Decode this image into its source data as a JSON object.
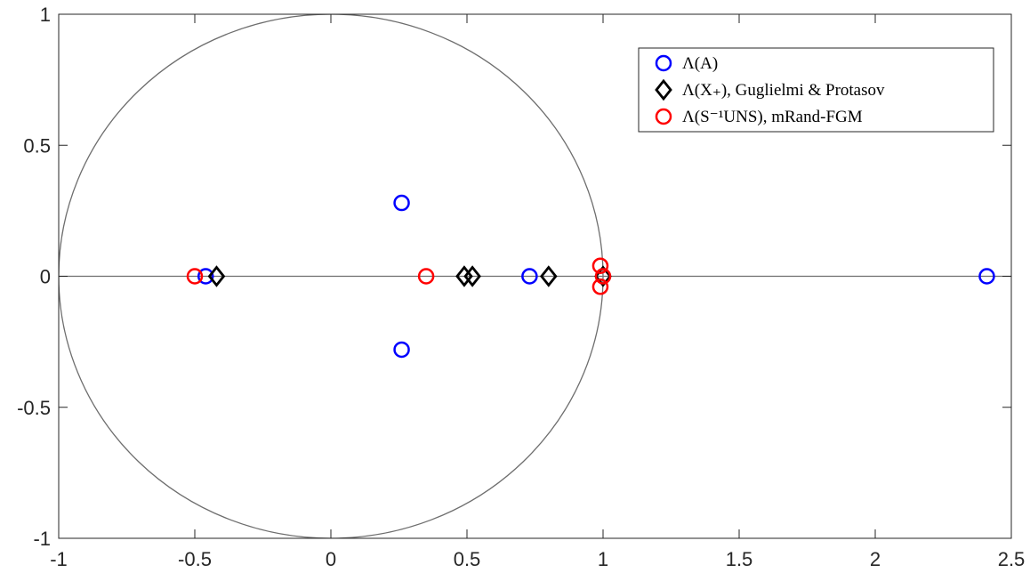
{
  "chart_data": {
    "type": "scatter",
    "xlim": [
      -1,
      2.5
    ],
    "ylim": [
      -1,
      1
    ],
    "grid": false,
    "legend_position": "top-right",
    "x_ticks": [
      "-1",
      "-0.5",
      "0",
      "0.5",
      "1",
      "1.5",
      "2",
      "2.5"
    ],
    "x_tick_values": [
      -1,
      -0.5,
      0,
      0.5,
      1,
      1.5,
      2,
      2.5
    ],
    "y_ticks": [
      "1",
      "0.5",
      "0",
      "-0.5",
      "-1"
    ],
    "y_tick_values": [
      1,
      0.5,
      0,
      -0.5,
      -1
    ],
    "reference_lines": {
      "unit_circle": {
        "center": [
          0,
          0
        ],
        "radius": 1,
        "color": "#6e6e6e"
      },
      "real_axis": {
        "y": 0,
        "color": "#6e6e6e"
      }
    },
    "series": [
      {
        "name": "Λ(A)",
        "marker": "circle",
        "color": "#0000ff",
        "points": [
          [
            -0.46,
            0
          ],
          [
            0.26,
            0.28
          ],
          [
            0.26,
            -0.28
          ],
          [
            0.73,
            0
          ],
          [
            2.41,
            0
          ]
        ]
      },
      {
        "name": "Λ(X₊), Guglielmi & Protasov",
        "marker": "diamond",
        "color": "#000000",
        "points": [
          [
            -0.42,
            0
          ],
          [
            0.49,
            0
          ],
          [
            0.52,
            0
          ],
          [
            0.8,
            0
          ],
          [
            1.0,
            0
          ]
        ]
      },
      {
        "name": "Λ(S⁻¹UNS), mRand-FGM",
        "marker": "circle",
        "color": "#ff0000",
        "points": [
          [
            -0.5,
            0
          ],
          [
            0.35,
            0
          ],
          [
            0.99,
            0.04
          ],
          [
            1.0,
            0
          ],
          [
            0.99,
            -0.04
          ]
        ]
      }
    ]
  }
}
